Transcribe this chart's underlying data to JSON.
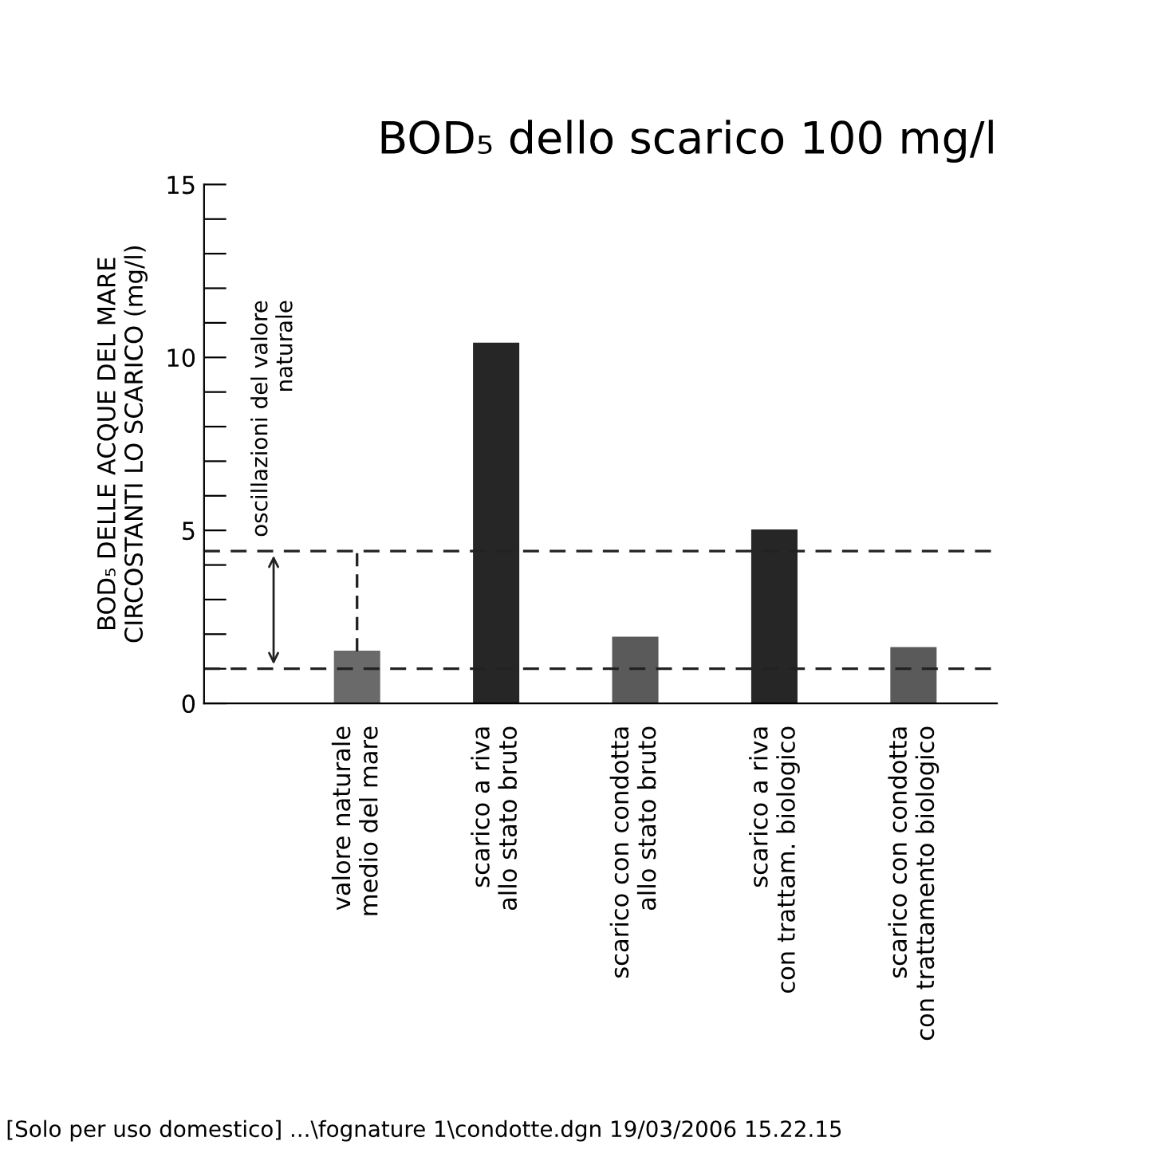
{
  "chart_data": {
    "type": "bar",
    "title": "BOD₅ dello scarico 100 mg/l",
    "ylabel": "BOD₅ DELLE ACQUE DEL MARE\nCIRCOSTANTI LO SCARICO (mg/l)",
    "categories": [
      "valore naturale\nmedio del mare",
      "scarico a riva\nallo stato bruto",
      "scarico con condotta\nallo stato bruto",
      "scarico a riva\ncon trattam. biologico",
      "scarico con condotta\ncon trattamento biologico"
    ],
    "values": [
      1.5,
      10.4,
      1.9,
      5.0,
      1.6
    ],
    "colors": [
      "#6a6a6a",
      "#262626",
      "#5a5a5a",
      "#262626",
      "#5a5a5a"
    ],
    "errors": [
      [
        1.5,
        4.4
      ],
      null,
      null,
      null,
      null
    ],
    "ylim": [
      0,
      15
    ],
    "yticks": [
      0,
      {
        "value": 1,
        "label": null
      },
      {
        "value": 2,
        "label": null
      },
      {
        "value": 3,
        "label": null
      },
      {
        "value": 4,
        "label": null
      },
      5,
      {
        "value": 6,
        "label": null
      },
      {
        "value": 7,
        "label": null
      },
      {
        "value": 8,
        "label": null
      },
      {
        "value": 9,
        "label": null
      },
      10,
      {
        "value": 11,
        "label": null
      },
      {
        "value": 12,
        "label": null
      },
      {
        "value": 13,
        "label": null
      },
      {
        "value": 14,
        "label": null
      },
      15
    ],
    "ref_lines": [
      {
        "axis": "y",
        "value": 4.4,
        "color": "#222222",
        "line_style": "dashed"
      },
      {
        "axis": "y",
        "value": 1.0,
        "color": "#222222",
        "line_style": "dashed"
      }
    ],
    "annotations": [
      "oscillazioni del valore\nnaturale",
      "[Solo per uso domestico] ...\\fognature 1\\condotte.dgn 19/03/2006 15.22.15"
    ],
    "grid": false,
    "legend": false
  }
}
